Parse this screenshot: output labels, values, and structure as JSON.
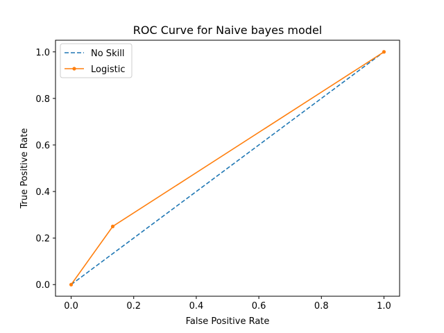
{
  "chart_data": {
    "type": "line",
    "title": "ROC Curve for Naive bayes model",
    "xlabel": "False Positive Rate",
    "ylabel": "True Positive Rate",
    "xlim": [
      -0.05,
      1.05
    ],
    "ylim": [
      -0.05,
      1.05
    ],
    "xticks": [
      0.0,
      0.2,
      0.4,
      0.6,
      0.8,
      1.0
    ],
    "xtick_labels": [
      "0.0",
      "0.2",
      "0.4",
      "0.6",
      "0.8",
      "1.0"
    ],
    "yticks": [
      0.0,
      0.2,
      0.4,
      0.6,
      0.8,
      1.0
    ],
    "ytick_labels": [
      "0.0",
      "0.2",
      "0.4",
      "0.6",
      "0.8",
      "1.0"
    ],
    "grid": false,
    "legend_position": "upper-left",
    "series": [
      {
        "name": "No Skill",
        "color": "#1f77b4",
        "linestyle": "dashed",
        "marker": "none",
        "x": [
          0.0,
          1.0
        ],
        "y": [
          0.0,
          1.0
        ]
      },
      {
        "name": "Logistic",
        "color": "#ff7f0e",
        "linestyle": "solid",
        "marker": "dot",
        "x": [
          0.0,
          0.133,
          1.0
        ],
        "y": [
          0.0,
          0.25,
          1.0
        ]
      }
    ]
  }
}
